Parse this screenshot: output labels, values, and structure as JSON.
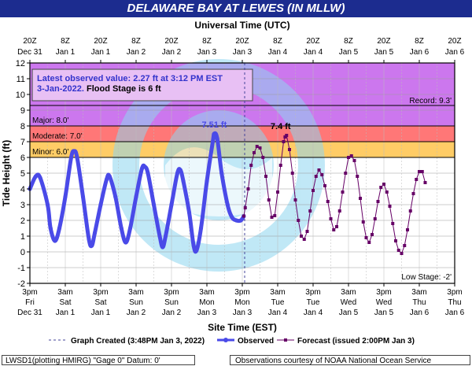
{
  "title": "DELAWARE BAY AT LEWES (IN MLLW)",
  "footer": {
    "left": "LWSD1(plotting HMIRG) \"Gage 0\" Datum:  0'",
    "right": "Observations courtesy of NOAA National Ocean Service"
  },
  "colors": {
    "banner": "#1c2c8f",
    "record_band": "#dd88ee",
    "major_band": "#cc77ee",
    "moderate_band": "#ff7777",
    "minor_band": "#ffcc66",
    "observed": "#4a4ae8",
    "forecast": "#660066",
    "watermark": "#8ed6f0"
  },
  "chart_data": {
    "type": "line",
    "title": "DELAWARE BAY AT LEWES (IN MLLW)",
    "top_axis_title": "Universal Time (UTC)",
    "xlabel": "Site Time (EST)",
    "ylabel": "Tide Height (ft)",
    "ylim": [
      -2,
      12
    ],
    "yticks": [
      -2,
      -1,
      0,
      1,
      2,
      3,
      4,
      5,
      6,
      7,
      8,
      9,
      10,
      11,
      12
    ],
    "xrange_hours_from_dec31_3pm_est": [
      0,
      144
    ],
    "top_tick_labels": [
      [
        "20Z",
        "Dec 31"
      ],
      [
        "8Z",
        "Jan 1"
      ],
      [
        "20Z",
        "Jan 1"
      ],
      [
        "8Z",
        "Jan 2"
      ],
      [
        "20Z",
        "Jan 2"
      ],
      [
        "8Z",
        "Jan 3"
      ],
      [
        "20Z",
        "Jan 3"
      ],
      [
        "8Z",
        "Jan 4"
      ],
      [
        "20Z",
        "Jan 4"
      ],
      [
        "8Z",
        "Jan 5"
      ],
      [
        "20Z",
        "Jan 5"
      ],
      [
        "8Z",
        "Jan 6"
      ],
      [
        "20Z",
        "Jan 6"
      ]
    ],
    "bottom_tick_labels": [
      [
        "3pm",
        "Fri",
        "Dec 31"
      ],
      [
        "3am",
        "Sat",
        "Jan 1"
      ],
      [
        "3pm",
        "Sat",
        "Jan 1"
      ],
      [
        "3am",
        "Sun",
        "Jan 2"
      ],
      [
        "3pm",
        "Sun",
        "Jan 2"
      ],
      [
        "3am",
        "Mon",
        "Jan 3"
      ],
      [
        "3pm",
        "Mon",
        "Jan 3"
      ],
      [
        "3am",
        "Tue",
        "Jan 4"
      ],
      [
        "3pm",
        "Tue",
        "Jan 4"
      ],
      [
        "3am",
        "Wed",
        "Jan 5"
      ],
      [
        "3pm",
        "Wed",
        "Jan 5"
      ],
      [
        "3am",
        "Thu",
        "Jan 6"
      ],
      [
        "3pm",
        "Thu",
        "Jan 6"
      ]
    ],
    "flood_categories": [
      {
        "name": "Record",
        "label": "Record: 9.3'",
        "value": 9.3
      },
      {
        "name": "Major",
        "label": "Major: 8.0'",
        "value": 8.0
      },
      {
        "name": "Moderate",
        "label": "Moderate: 7.0'",
        "value": 7.0
      },
      {
        "name": "Minor",
        "label": "Minor: 6.0'",
        "value": 6.0
      },
      {
        "name": "Low Stage",
        "label": "Low Stage: -2'",
        "value": -2
      }
    ],
    "info_box": {
      "line1": "Latest observed value: 2.27 ft at 3:12 PM EST",
      "line2_date": "3-Jan-2022.",
      "line2_flood": "Flood Stage is 6 ft"
    },
    "annotations": [
      {
        "text": "7.51 ft",
        "x": 62.5,
        "y": 7.51
      },
      {
        "text": "7.4 ft",
        "x": 85,
        "y": 7.4
      }
    ],
    "graph_created_x": 72.8,
    "legend": [
      {
        "key": "created",
        "label": "Graph Created (3:48PM Jan 3, 2022)"
      },
      {
        "key": "observed",
        "label": "Observed"
      },
      {
        "key": "forecast",
        "label": "Forecast (issued 2:00PM Jan 3)"
      }
    ],
    "series": [
      {
        "name": "Observed",
        "points": [
          [
            0,
            4.0
          ],
          [
            2,
            4.8
          ],
          [
            3.5,
            4.7
          ],
          [
            6,
            3.0
          ],
          [
            7,
            1.5
          ],
          [
            8.5,
            0.7
          ],
          [
            10,
            1.5
          ],
          [
            12,
            3.5
          ],
          [
            14,
            6.0
          ],
          [
            15,
            6.4
          ],
          [
            16,
            6.0
          ],
          [
            18,
            3.5
          ],
          [
            20,
            0.8
          ],
          [
            21,
            0.4
          ],
          [
            22,
            1.2
          ],
          [
            24,
            3.0
          ],
          [
            26,
            4.6
          ],
          [
            27,
            4.8
          ],
          [
            29,
            3.5
          ],
          [
            31,
            1.5
          ],
          [
            32.5,
            0.6
          ],
          [
            34,
            1.5
          ],
          [
            36,
            3.5
          ],
          [
            38,
            5.3
          ],
          [
            39,
            5.4
          ],
          [
            40,
            5.0
          ],
          [
            42,
            3.0
          ],
          [
            44,
            1.0
          ],
          [
            45,
            0.3
          ],
          [
            46,
            1.0
          ],
          [
            48,
            3.0
          ],
          [
            50,
            5.0
          ],
          [
            51,
            5.2
          ],
          [
            52,
            4.5
          ],
          [
            54,
            2.5
          ],
          [
            55.5,
            0.4
          ],
          [
            56.5,
            0.1
          ],
          [
            58,
            1.5
          ],
          [
            60,
            4.5
          ],
          [
            62,
            7.0
          ],
          [
            62.5,
            7.51
          ],
          [
            63.5,
            7.2
          ],
          [
            65,
            5.0
          ],
          [
            67,
            3.0
          ],
          [
            68.5,
            2.2
          ],
          [
            70,
            2.0
          ],
          [
            71.5,
            2.0
          ],
          [
            72.5,
            2.27
          ]
        ]
      },
      {
        "name": "Forecast",
        "points": [
          [
            72.5,
            2.27
          ],
          [
            73,
            2.8
          ],
          [
            74,
            4.0
          ],
          [
            75,
            5.5
          ],
          [
            76,
            6.3
          ],
          [
            77,
            6.7
          ],
          [
            78,
            6.6
          ],
          [
            79,
            6.0
          ],
          [
            80,
            4.8
          ],
          [
            81,
            3.3
          ],
          [
            82,
            2.2
          ],
          [
            83,
            2.3
          ],
          [
            84,
            3.8
          ],
          [
            85,
            5.5
          ],
          [
            86,
            7.0
          ],
          [
            86.5,
            7.3
          ],
          [
            87,
            7.4
          ],
          [
            88,
            6.5
          ],
          [
            89,
            5.0
          ],
          [
            90,
            3.3
          ],
          [
            91,
            2.0
          ],
          [
            92,
            1.0
          ],
          [
            93,
            0.8
          ],
          [
            94,
            1.3
          ],
          [
            95,
            2.6
          ],
          [
            96,
            3.9
          ],
          [
            97,
            4.8
          ],
          [
            98,
            5.2
          ],
          [
            99,
            4.9
          ],
          [
            100,
            4.2
          ],
          [
            101,
            3.2
          ],
          [
            102,
            2.1
          ],
          [
            103,
            1.4
          ],
          [
            104,
            1.6
          ],
          [
            105,
            2.6
          ],
          [
            106,
            3.8
          ],
          [
            107,
            5.0
          ],
          [
            108,
            6.0
          ],
          [
            109,
            6.1
          ],
          [
            110,
            5.8
          ],
          [
            111,
            4.8
          ],
          [
            112,
            3.4
          ],
          [
            113,
            1.9
          ],
          [
            114,
            0.9
          ],
          [
            115,
            0.6
          ],
          [
            116,
            1.1
          ],
          [
            117,
            2.1
          ],
          [
            118,
            3.2
          ],
          [
            119,
            4.1
          ],
          [
            120,
            4.3
          ],
          [
            121,
            3.8
          ],
          [
            122,
            2.9
          ],
          [
            123,
            1.8
          ],
          [
            124,
            0.7
          ],
          [
            125,
            0.1
          ],
          [
            126,
            -0.1
          ],
          [
            127,
            0.4
          ],
          [
            128,
            1.4
          ],
          [
            129,
            2.6
          ],
          [
            130,
            3.7
          ],
          [
            131,
            4.6
          ],
          [
            132,
            5.1
          ],
          [
            133,
            5.1
          ],
          [
            134,
            4.4
          ]
        ]
      }
    ]
  }
}
